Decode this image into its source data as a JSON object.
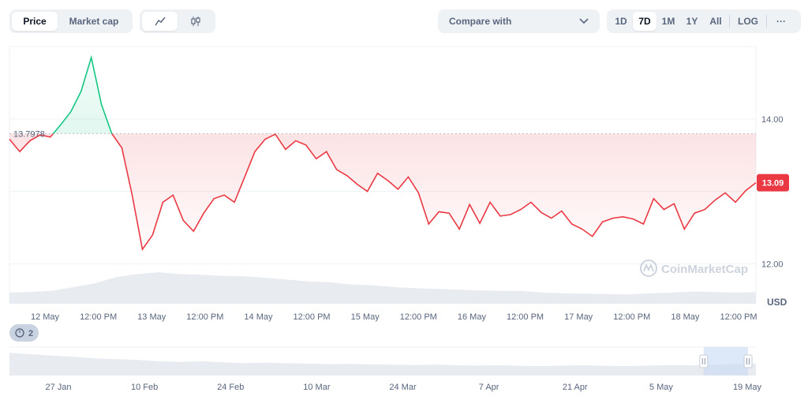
{
  "toolbar": {
    "type_tabs": [
      {
        "label": "Price",
        "active": true
      },
      {
        "label": "Market cap",
        "active": false
      }
    ],
    "style_icons": [
      "line-chart-icon",
      "candlestick-icon"
    ],
    "compare_label": "Compare with",
    "ranges": [
      {
        "label": "1D",
        "active": false
      },
      {
        "label": "7D",
        "active": true
      },
      {
        "label": "1M",
        "active": false
      },
      {
        "label": "1Y",
        "active": false
      },
      {
        "label": "All",
        "active": false
      }
    ],
    "log_label": "LOG",
    "more_label": "···"
  },
  "watermark": "CoinMarketCap",
  "events_badge": "2",
  "colors": {
    "up": "#16c784",
    "down": "#ea3943",
    "grid": "#eff2f5",
    "volume": "#e6e9ee"
  },
  "chart_data": {
    "type": "line",
    "title": "",
    "baseline_label": "13.7978",
    "current_label": "13.09",
    "y_unit": "USD",
    "ylim": [
      11.45,
      15.0
    ],
    "y_ticks": [
      {
        "value": 14.0,
        "label": "14.00"
      },
      {
        "value": 12.0,
        "label": "12.00"
      }
    ],
    "x_ticks": [
      "12 May",
      "12:00 PM",
      "13 May",
      "12:00 PM",
      "14 May",
      "12:00 PM",
      "15 May",
      "12:00 PM",
      "16 May",
      "12:00 PM",
      "17 May",
      "12:00 PM",
      "18 May",
      "12:00 PM"
    ],
    "series": [
      {
        "x_start": "12 May 00:00",
        "x_step_hours": 6,
        "values": [
          13.72,
          13.55,
          13.7,
          13.78,
          13.75,
          13.92,
          14.1,
          14.38,
          14.85,
          14.2,
          13.8,
          13.6,
          12.95,
          12.2,
          12.4,
          12.85,
          12.95,
          12.6,
          12.45,
          12.7,
          12.9,
          12.95,
          12.85,
          13.2,
          13.55,
          13.72,
          13.79,
          13.58,
          13.7,
          13.64,
          13.45,
          13.55,
          13.3,
          13.22,
          13.1,
          13.0,
          13.25,
          13.15,
          13.03,
          13.2,
          12.98,
          12.55,
          12.72,
          12.7,
          12.48,
          12.82,
          12.56,
          12.85,
          12.66,
          12.68,
          12.75,
          12.85,
          12.71,
          12.63,
          12.73,
          12.55,
          12.48,
          12.38,
          12.58,
          12.63,
          12.65,
          12.62,
          12.55,
          12.9,
          12.75,
          12.83,
          12.48,
          12.7,
          12.75,
          12.88,
          12.98,
          12.85,
          13.01,
          13.12
        ]
      }
    ],
    "volume_series": {
      "values": [
        0.3,
        0.32,
        0.35,
        0.45,
        0.55,
        0.72,
        0.8,
        0.85,
        0.8,
        0.78,
        0.75,
        0.74,
        0.7,
        0.65,
        0.6,
        0.58,
        0.52,
        0.5,
        0.45,
        0.42,
        0.4,
        0.38,
        0.36,
        0.35,
        0.35,
        0.3,
        0.28,
        0.27,
        0.26,
        0.25,
        0.28,
        0.3,
        0.33,
        0.32,
        0.3,
        0.31
      ]
    },
    "navigator": {
      "x_ticks": [
        "27 Jan",
        "10 Feb",
        "24 Feb",
        "10 Mar",
        "24 Mar",
        "7 Apr",
        "21 Apr",
        "5 May",
        "19 May"
      ],
      "values": [
        0.8,
        0.75,
        0.7,
        0.66,
        0.6,
        0.58,
        0.55,
        0.5,
        0.48,
        0.5,
        0.46,
        0.44,
        0.45,
        0.43,
        0.42,
        0.4,
        0.41,
        0.39,
        0.38,
        0.37,
        0.38,
        0.36,
        0.35,
        0.36,
        0.34,
        0.33,
        0.35,
        0.36,
        0.34,
        0.33,
        0.35,
        0.37,
        0.36,
        0.38,
        0.4,
        0.42
      ],
      "window": [
        0.93,
        1.0
      ]
    }
  }
}
